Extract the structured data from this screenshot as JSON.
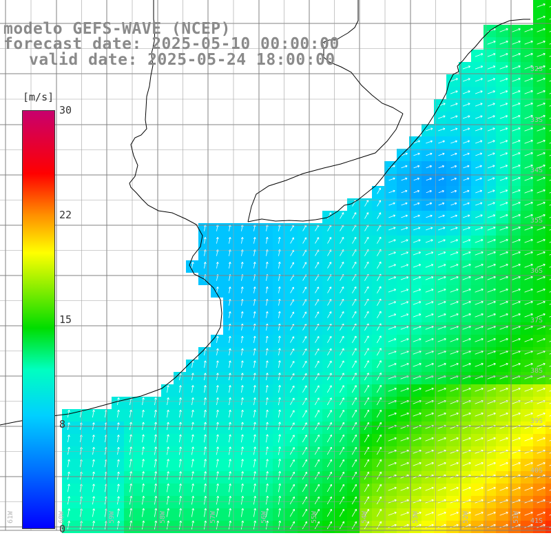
{
  "title_lines": [
    "modelo GEFS-WAVE (NCEP)",
    "forecast date: 2025-05-10 00:00:00",
    "valid date: 2025-05-24 18:00:00"
  ],
  "colorbar": {
    "unit": "[m/s]",
    "ticks": [
      "30",
      "22",
      "15",
      "8",
      "0"
    ],
    "colors": [
      "#0000ff",
      "#0070ff",
      "#00d0ff",
      "#00ffc0",
      "#00dd00",
      "#90ee00",
      "#ffff00",
      "#ff9000",
      "#ff0000",
      "#c8006e"
    ]
  },
  "lat_labels": [
    "32S",
    "33S",
    "34S",
    "35S",
    "36S",
    "37S",
    "38S",
    "39S",
    "40S",
    "41S"
  ],
  "lon_labels": [
    "61W",
    "60W",
    "59W",
    "58W",
    "57W",
    "56W",
    "55W",
    "54W",
    "53W",
    "52W",
    "51W"
  ],
  "colors": {
    "land": "#ffffff",
    "coast": "#000000",
    "grid": "#808080",
    "arrow": "#ffffff"
  }
}
